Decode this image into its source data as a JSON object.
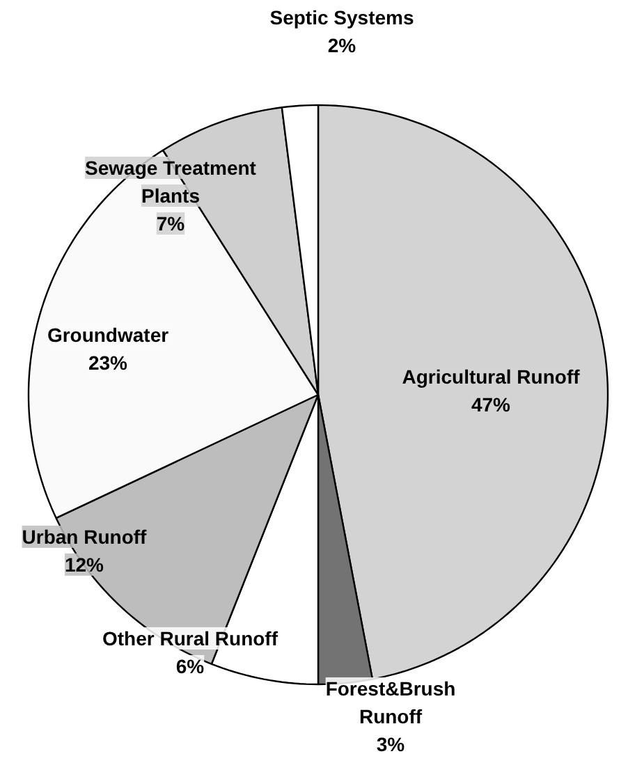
{
  "chart_data": {
    "type": "pie",
    "categories": [
      "Agricultural Runoff",
      "Forest&Brush Runoff",
      "Other Rural Runoff",
      "Urban Runoff",
      "Groundwater",
      "Sewage Treatment Plants",
      "Septic Systems"
    ],
    "values": [
      47,
      3,
      6,
      12,
      23,
      7,
      2
    ],
    "colors": [
      "#d3d3d3",
      "#737373",
      "#ffffff",
      "#bdbdbd",
      "#fafafa",
      "#cfcfcf",
      "#ffffff"
    ],
    "value_labels": [
      "47%",
      "3%",
      "6%",
      "12%",
      "23%",
      "7%",
      "2%"
    ]
  }
}
